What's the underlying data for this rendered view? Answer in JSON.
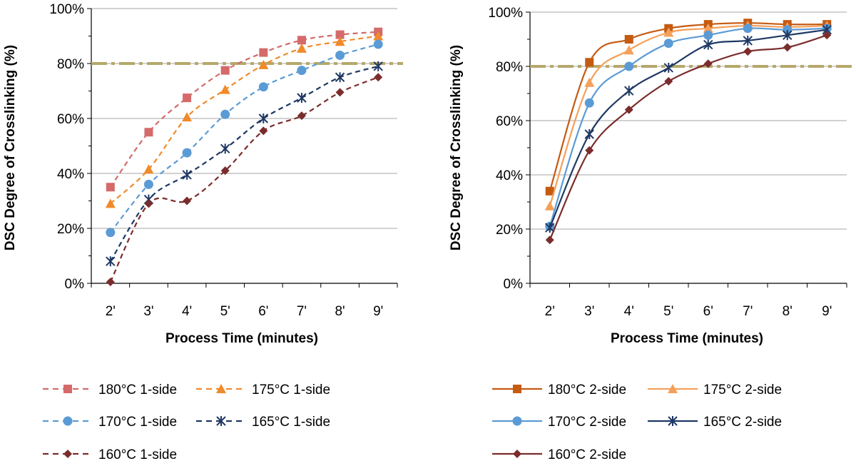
{
  "chart_data": [
    {
      "type": "line",
      "line_style": "dashed",
      "title": "",
      "xlabel": "Process Time (minutes)",
      "ylabel": "DSC Degree of Crosslinking (%)",
      "categories": [
        "2'",
        "3'",
        "4'",
        "5'",
        "6'",
        "7'",
        "8'",
        "9'"
      ],
      "ylim": [
        0,
        100
      ],
      "y_ticks": [
        0,
        20,
        40,
        60,
        80,
        100
      ],
      "y_tick_labels": [
        "0%",
        "20%",
        "40%",
        "60%",
        "80%",
        "100%"
      ],
      "grid": true,
      "reference_line": {
        "y": 80,
        "color": "#b5a86a",
        "style": "dash-dot"
      },
      "legend_position": "bottom",
      "series": [
        {
          "name": "180°C 1-side",
          "color": "#d46a6a",
          "marker": "square",
          "values": [
            35,
            55,
            67.5,
            77.5,
            84,
            88.5,
            90.5,
            91.5
          ]
        },
        {
          "name": "175°C 1-side",
          "color": "#f08a2a",
          "marker": "triangle",
          "values": [
            29,
            41.5,
            60.5,
            70.5,
            79.5,
            85.5,
            88,
            90
          ]
        },
        {
          "name": "170°C 1-side",
          "color": "#5b9bd5",
          "marker": "circle",
          "values": [
            18.5,
            36,
            47.5,
            61.5,
            71.5,
            77.5,
            83,
            87
          ]
        },
        {
          "name": "165°C 1-side",
          "color": "#1f3864",
          "marker": "star",
          "values": [
            8,
            30.5,
            39.5,
            49,
            60,
            67.5,
            75,
            79
          ]
        },
        {
          "name": "160°C 1-side",
          "color": "#7b2c2c",
          "marker": "diamond",
          "values": [
            0.5,
            29,
            30,
            41,
            55.5,
            61,
            69.5,
            75
          ]
        }
      ]
    },
    {
      "type": "line",
      "line_style": "solid",
      "title": "",
      "xlabel": "Process Time (minutes)",
      "ylabel": "DSC Degree of Crosslinking (%)",
      "categories": [
        "2'",
        "3'",
        "4'",
        "5'",
        "6'",
        "7'",
        "8'",
        "9'"
      ],
      "ylim": [
        0,
        100
      ],
      "y_ticks": [
        0,
        20,
        40,
        60,
        80,
        100
      ],
      "y_tick_labels": [
        "0%",
        "20%",
        "40%",
        "60%",
        "80%",
        "100%"
      ],
      "grid": true,
      "reference_line": {
        "y": 80,
        "color": "#b5a86a",
        "style": "dash-dot"
      },
      "legend_position": "bottom",
      "series": [
        {
          "name": "180°C 2-side",
          "color": "#c55a11",
          "marker": "square",
          "values": [
            34,
            81.5,
            90,
            94,
            95.5,
            96,
            95.5,
            95.5
          ]
        },
        {
          "name": "175°C 2-side",
          "color": "#f4a05a",
          "marker": "triangle",
          "values": [
            28.5,
            74,
            86,
            92.5,
            94,
            95,
            94.5,
            95
          ]
        },
        {
          "name": "170°C 2-side",
          "color": "#5b9bd5",
          "marker": "circle",
          "values": [
            21,
            66.5,
            80,
            88.5,
            91.5,
            94,
            93.5,
            94
          ]
        },
        {
          "name": "165°C 2-side",
          "color": "#1f3864",
          "marker": "star",
          "values": [
            20.5,
            55,
            71,
            79.5,
            88,
            89.5,
            91.5,
            93.5
          ]
        },
        {
          "name": "160°C 2-side",
          "color": "#7b2c2c",
          "marker": "diamond",
          "values": [
            16,
            49,
            64,
            74.5,
            81,
            85.5,
            87,
            91.5
          ]
        }
      ]
    }
  ]
}
